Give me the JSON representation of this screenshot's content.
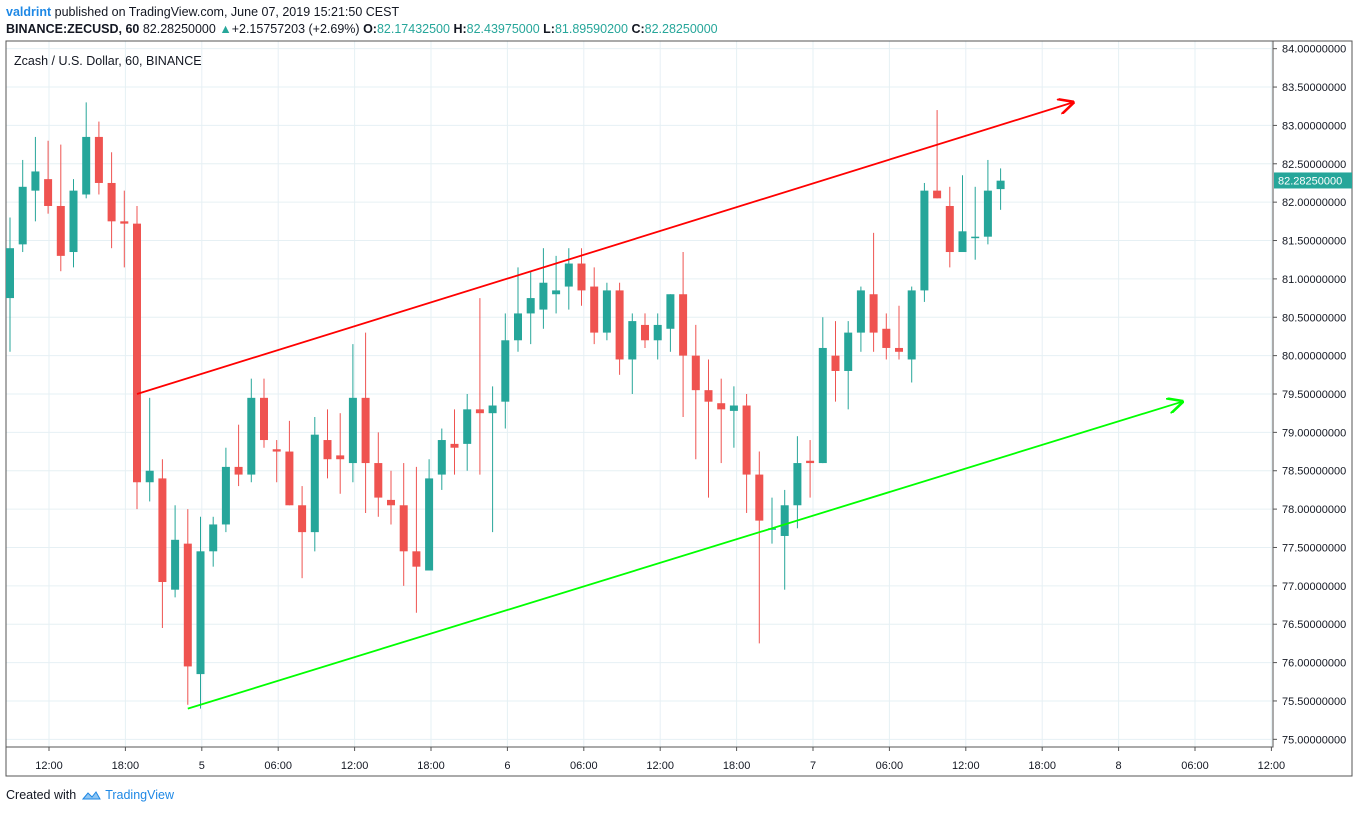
{
  "header": {
    "user": "valdrint",
    "published_text": "published on TradingView.com, June 07, 2019 15:21:50 CEST",
    "symbol": "BINANCE:ZECUSD, 60",
    "last_price": "82.28250000",
    "change_arrow": "▲",
    "change": "+2.15757203 (+2.69%)",
    "o_label": "O:",
    "o_value": "82.17432500",
    "h_label": "H:",
    "h_value": "82.43975000",
    "l_label": "L:",
    "l_value": "81.89590200",
    "c_label": "C:",
    "c_value": "82.28250000"
  },
  "footer": {
    "created_with": "Created with",
    "brand": "TradingView",
    "logo_icon": "tradingview-cloud-icon"
  },
  "colors": {
    "up": "#26a69a",
    "down": "#ef5350",
    "upper_trendline": "#ff0000",
    "lower_trendline": "#00ff00",
    "grid": "#e6f0f4",
    "axis": "#555555",
    "price_label_bg": "#26a69a"
  },
  "chart_data": {
    "type": "candlestick",
    "title": "Zcash / U.S. Dollar, 60, BINANCE",
    "y_range": [
      74.9,
      84.1
    ],
    "x_ticks": [
      "12:00",
      "18:00",
      "5",
      "06:00",
      "12:00",
      "18:00",
      "6",
      "06:00",
      "12:00",
      "18:00",
      "7",
      "06:00",
      "12:00",
      "18:00",
      "8",
      "06:00",
      "12:00"
    ],
    "y_ticks": [
      {
        "value": 84.0,
        "label": "84.00000000"
      },
      {
        "value": 83.5,
        "label": "83.50000000"
      },
      {
        "value": 83.0,
        "label": "83.00000000"
      },
      {
        "value": 82.5,
        "label": "82.50000000"
      },
      {
        "value": 82.0,
        "label": "82.00000000"
      },
      {
        "value": 81.5,
        "label": "81.50000000"
      },
      {
        "value": 81.0,
        "label": "81.00000000"
      },
      {
        "value": 80.5,
        "label": "80.50000000"
      },
      {
        "value": 80.0,
        "label": "80.00000000"
      },
      {
        "value": 79.5,
        "label": "79.50000000"
      },
      {
        "value": 79.0,
        "label": "79.00000000"
      },
      {
        "value": 78.5,
        "label": "78.50000000"
      },
      {
        "value": 78.0,
        "label": "78.00000000"
      },
      {
        "value": 77.5,
        "label": "77.50000000"
      },
      {
        "value": 77.0,
        "label": "77.00000000"
      },
      {
        "value": 76.5,
        "label": "76.50000000"
      },
      {
        "value": 76.0,
        "label": "76.00000000"
      },
      {
        "value": 75.5,
        "label": "75.50000000"
      },
      {
        "value": 75.0,
        "label": "75.00000000"
      }
    ],
    "current_price": {
      "value": 82.2825,
      "label": "82.28250000"
    },
    "candles": [
      {
        "o": 80.75,
        "h": 81.8,
        "l": 80.05,
        "c": 81.4
      },
      {
        "o": 81.45,
        "h": 82.55,
        "l": 81.35,
        "c": 82.2
      },
      {
        "o": 82.15,
        "h": 82.85,
        "l": 81.75,
        "c": 82.4
      },
      {
        "o": 82.3,
        "h": 82.8,
        "l": 81.85,
        "c": 81.95
      },
      {
        "o": 81.95,
        "h": 82.75,
        "l": 81.1,
        "c": 81.3
      },
      {
        "o": 81.35,
        "h": 82.3,
        "l": 81.15,
        "c": 82.15
      },
      {
        "o": 82.1,
        "h": 83.3,
        "l": 82.05,
        "c": 82.85
      },
      {
        "o": 82.85,
        "h": 83.05,
        "l": 82.1,
        "c": 82.25
      },
      {
        "o": 82.25,
        "h": 82.65,
        "l": 81.4,
        "c": 81.75
      },
      {
        "o": 81.75,
        "h": 82.15,
        "l": 81.15,
        "c": 81.72
      },
      {
        "o": 81.72,
        "h": 81.95,
        "l": 78.0,
        "c": 78.35
      },
      {
        "o": 78.35,
        "h": 79.45,
        "l": 78.1,
        "c": 78.5
      },
      {
        "o": 78.4,
        "h": 78.65,
        "l": 76.45,
        "c": 77.05
      },
      {
        "o": 76.95,
        "h": 78.05,
        "l": 76.85,
        "c": 77.6
      },
      {
        "o": 77.55,
        "h": 78.0,
        "l": 75.45,
        "c": 75.95
      },
      {
        "o": 75.85,
        "h": 77.9,
        "l": 75.4,
        "c": 77.45
      },
      {
        "o": 77.45,
        "h": 77.9,
        "l": 77.25,
        "c": 77.8
      },
      {
        "o": 77.8,
        "h": 78.8,
        "l": 77.7,
        "c": 78.55
      },
      {
        "o": 78.55,
        "h": 79.1,
        "l": 78.3,
        "c": 78.45
      },
      {
        "o": 78.45,
        "h": 79.7,
        "l": 78.35,
        "c": 79.45
      },
      {
        "o": 79.45,
        "h": 79.7,
        "l": 78.8,
        "c": 78.9
      },
      {
        "o": 78.78,
        "h": 78.9,
        "l": 78.35,
        "c": 78.75
      },
      {
        "o": 78.75,
        "h": 79.15,
        "l": 78.05,
        "c": 78.05
      },
      {
        "o": 78.05,
        "h": 78.3,
        "l": 77.1,
        "c": 77.7
      },
      {
        "o": 77.7,
        "h": 79.2,
        "l": 77.45,
        "c": 78.97
      },
      {
        "o": 78.9,
        "h": 79.3,
        "l": 78.4,
        "c": 78.65
      },
      {
        "o": 78.7,
        "h": 79.25,
        "l": 78.2,
        "c": 78.65
      },
      {
        "o": 78.6,
        "h": 80.15,
        "l": 78.35,
        "c": 79.45
      },
      {
        "o": 79.45,
        "h": 80.3,
        "l": 77.95,
        "c": 78.6
      },
      {
        "o": 78.6,
        "h": 79.0,
        "l": 77.9,
        "c": 78.15
      },
      {
        "o": 78.12,
        "h": 78.5,
        "l": 77.8,
        "c": 78.05
      },
      {
        "o": 78.05,
        "h": 78.6,
        "l": 77.0,
        "c": 77.45
      },
      {
        "o": 77.45,
        "h": 78.55,
        "l": 76.65,
        "c": 77.25
      },
      {
        "o": 77.2,
        "h": 78.65,
        "l": 77.2,
        "c": 78.4
      },
      {
        "o": 78.45,
        "h": 79.05,
        "l": 78.25,
        "c": 78.9
      },
      {
        "o": 78.85,
        "h": 79.3,
        "l": 78.45,
        "c": 78.8
      },
      {
        "o": 78.85,
        "h": 79.5,
        "l": 78.5,
        "c": 79.3
      },
      {
        "o": 79.3,
        "h": 80.75,
        "l": 78.45,
        "c": 79.25
      },
      {
        "o": 79.25,
        "h": 79.6,
        "l": 77.7,
        "c": 79.35
      },
      {
        "o": 79.4,
        "h": 80.55,
        "l": 79.05,
        "c": 80.2
      },
      {
        "o": 80.2,
        "h": 81.15,
        "l": 80.05,
        "c": 80.55
      },
      {
        "o": 80.55,
        "h": 81.1,
        "l": 80.15,
        "c": 80.75
      },
      {
        "o": 80.6,
        "h": 81.4,
        "l": 80.35,
        "c": 80.95
      },
      {
        "o": 80.8,
        "h": 81.3,
        "l": 80.55,
        "c": 80.85
      },
      {
        "o": 80.9,
        "h": 81.4,
        "l": 80.6,
        "c": 81.2
      },
      {
        "o": 81.2,
        "h": 81.4,
        "l": 80.65,
        "c": 80.85
      },
      {
        "o": 80.9,
        "h": 81.15,
        "l": 80.15,
        "c": 80.3
      },
      {
        "o": 80.3,
        "h": 80.95,
        "l": 80.2,
        "c": 80.85
      },
      {
        "o": 80.85,
        "h": 80.95,
        "l": 79.75,
        "c": 79.95
      },
      {
        "o": 79.95,
        "h": 80.55,
        "l": 79.5,
        "c": 80.45
      },
      {
        "o": 80.4,
        "h": 80.55,
        "l": 80.1,
        "c": 80.2
      },
      {
        "o": 80.2,
        "h": 80.55,
        "l": 79.95,
        "c": 80.4
      },
      {
        "o": 80.35,
        "h": 80.8,
        "l": 80.05,
        "c": 80.8
      },
      {
        "o": 80.8,
        "h": 81.35,
        "l": 79.2,
        "c": 80.0
      },
      {
        "o": 80.0,
        "h": 80.4,
        "l": 78.65,
        "c": 79.55
      },
      {
        "o": 79.55,
        "h": 79.95,
        "l": 78.15,
        "c": 79.4
      },
      {
        "o": 79.38,
        "h": 79.7,
        "l": 78.6,
        "c": 79.3
      },
      {
        "o": 79.28,
        "h": 79.6,
        "l": 78.8,
        "c": 79.35
      },
      {
        "o": 79.35,
        "h": 79.5,
        "l": 77.95,
        "c": 78.45
      },
      {
        "o": 78.45,
        "h": 78.75,
        "l": 76.25,
        "c": 77.85
      },
      {
        "o": 77.75,
        "h": 78.15,
        "l": 77.55,
        "c": 77.75
      },
      {
        "o": 77.65,
        "h": 78.25,
        "l": 76.95,
        "c": 78.05
      },
      {
        "o": 78.05,
        "h": 78.95,
        "l": 77.75,
        "c": 78.6
      },
      {
        "o": 78.63,
        "h": 78.9,
        "l": 78.15,
        "c": 78.6
      },
      {
        "o": 78.6,
        "h": 80.5,
        "l": 78.6,
        "c": 80.1
      },
      {
        "o": 80.0,
        "h": 80.45,
        "l": 79.4,
        "c": 79.8
      },
      {
        "o": 79.8,
        "h": 80.45,
        "l": 79.3,
        "c": 80.3
      },
      {
        "o": 80.3,
        "h": 80.9,
        "l": 80.05,
        "c": 80.85
      },
      {
        "o": 80.8,
        "h": 81.6,
        "l": 80.05,
        "c": 80.3
      },
      {
        "o": 80.35,
        "h": 80.55,
        "l": 79.95,
        "c": 80.1
      },
      {
        "o": 80.1,
        "h": 80.65,
        "l": 79.95,
        "c": 80.05
      },
      {
        "o": 79.95,
        "h": 80.9,
        "l": 79.65,
        "c": 80.85
      },
      {
        "o": 80.85,
        "h": 82.25,
        "l": 80.7,
        "c": 82.15
      },
      {
        "o": 82.15,
        "h": 83.2,
        "l": 82.05,
        "c": 82.05
      },
      {
        "o": 81.95,
        "h": 82.2,
        "l": 81.15,
        "c": 81.35
      },
      {
        "o": 81.35,
        "h": 82.35,
        "l": 81.35,
        "c": 81.62
      },
      {
        "o": 81.55,
        "h": 82.2,
        "l": 81.25,
        "c": 81.55
      },
      {
        "o": 81.55,
        "h": 82.55,
        "l": 81.45,
        "c": 82.15
      },
      {
        "o": 82.17,
        "h": 82.44,
        "l": 81.9,
        "c": 82.28
      }
    ],
    "trendlines": [
      {
        "name": "upper-channel-line",
        "color": "#ff0000",
        "t1": 10,
        "p1": 79.5,
        "t2": 83.7,
        "p2": 83.3
      },
      {
        "name": "lower-channel-line",
        "color": "#00ff00",
        "t1": 14,
        "p1": 75.4,
        "t2": 92.3,
        "p2": 79.4
      }
    ]
  }
}
